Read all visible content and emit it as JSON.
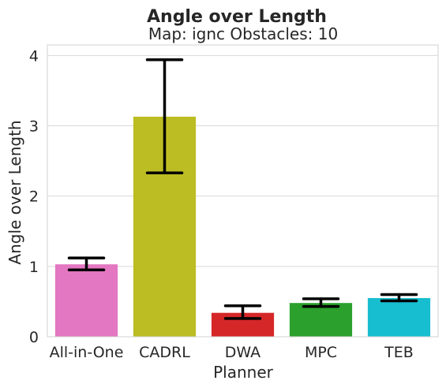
{
  "chart_data": {
    "type": "bar",
    "title": "Angle over Length",
    "subtitle": "Map: ignc Obstacles: 10",
    "xlabel": "Planner",
    "ylabel": "Angle over Length",
    "ylim": [
      0,
      4.15
    ],
    "yticks": [
      0,
      1,
      2,
      3,
      4
    ],
    "grid": true,
    "categories": [
      "All-in-One",
      "CADRL",
      "DWA",
      "MPC",
      "TEB"
    ],
    "values": [
      1.03,
      3.13,
      0.34,
      0.48,
      0.55
    ],
    "error_low": [
      0.95,
      2.33,
      0.26,
      0.43,
      0.51
    ],
    "error_high": [
      1.12,
      3.94,
      0.44,
      0.54,
      0.6
    ],
    "colors": [
      "#e377c2",
      "#bcbd22",
      "#d62728",
      "#2ca02c",
      "#17becf"
    ]
  }
}
